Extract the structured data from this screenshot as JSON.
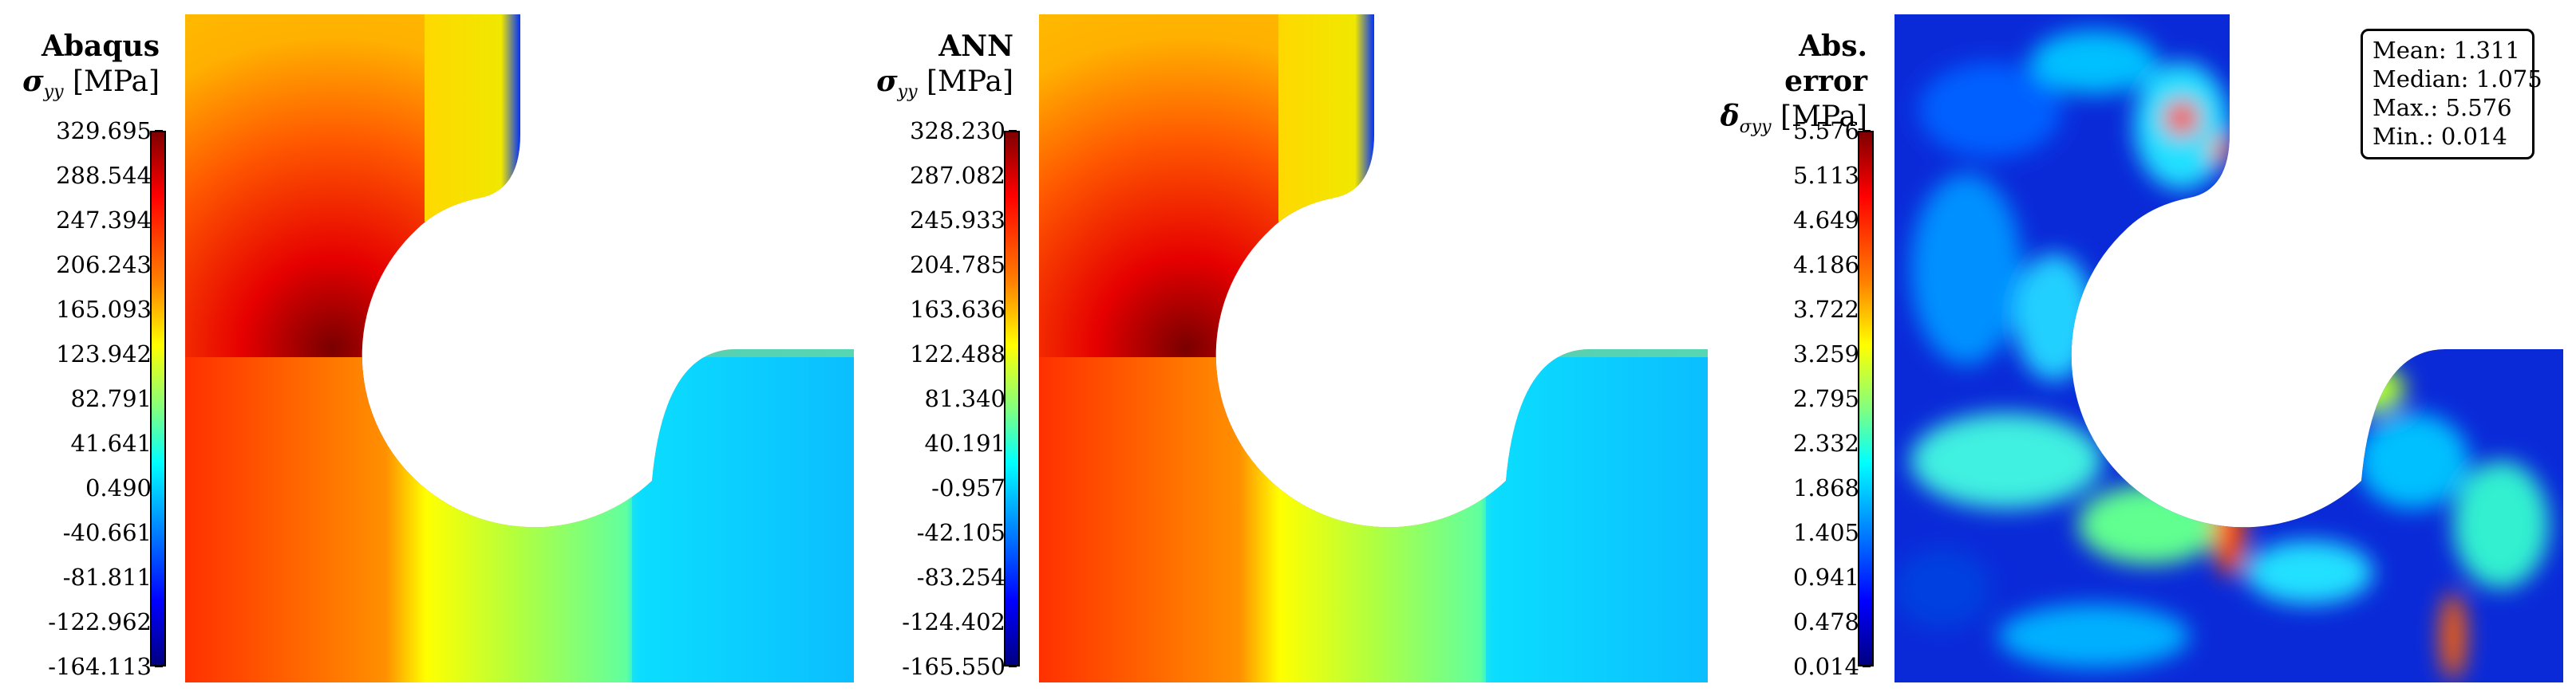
{
  "panels": [
    {
      "title": "Abaqus",
      "quantity_symbol": "σ",
      "quantity_sub": "yy",
      "unit": "[MPa]",
      "colorbar_ticks": [
        "329.695",
        "288.544",
        "247.394",
        "206.243",
        "165.093",
        "123.942",
        "82.791",
        "41.641",
        "0.490",
        "-40.661",
        "-81.811",
        "-122.962",
        "-164.113"
      ]
    },
    {
      "title": "ANN",
      "quantity_symbol": "σ",
      "quantity_sub": "yy",
      "unit": "[MPa]",
      "colorbar_ticks": [
        "328.230",
        "287.082",
        "245.933",
        "204.785",
        "163.636",
        "122.488",
        "81.340",
        "40.191",
        "-0.957",
        "-42.105",
        "-83.254",
        "-124.402",
        "-165.550"
      ]
    },
    {
      "title": "Abs. error",
      "quantity_symbol": "δ",
      "quantity_sub": "σyy",
      "unit": "[MPa]",
      "colorbar_ticks": [
        "5.576",
        "5.113",
        "4.649",
        "4.186",
        "3.722",
        "3.259",
        "2.795",
        "2.332",
        "1.868",
        "1.405",
        "0.941",
        "0.478",
        "0.014"
      ]
    }
  ],
  "stats": {
    "mean": "Mean: 1.311",
    "median": "Median: 1.075",
    "max": "Max.: 5.576",
    "min": "Min.: 0.014"
  },
  "colormap": [
    "#800000",
    "#ff0000",
    "#ff8000",
    "#ffff00",
    "#80ff80",
    "#00ffff",
    "#0080ff",
    "#0000ff",
    "#000080"
  ]
}
